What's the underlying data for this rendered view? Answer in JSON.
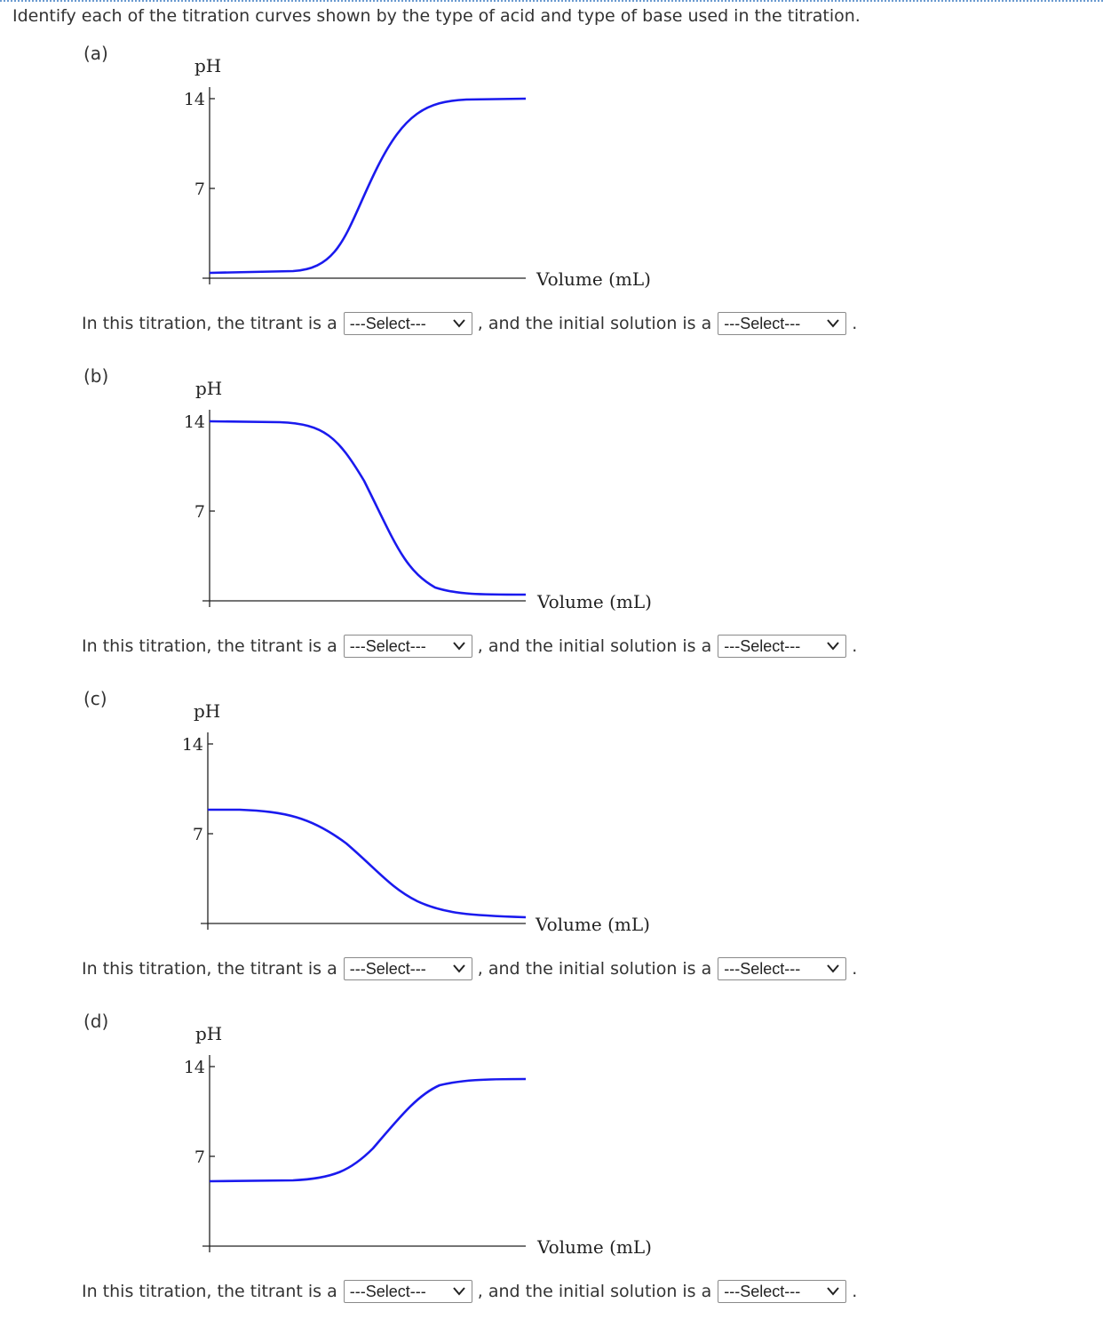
{
  "question": "Identify each of the titration curves shown by the type of acid and type of base used in the titration.",
  "axis": {
    "y_label": "pH",
    "y_ticks": [
      "14",
      "7"
    ],
    "x_label": "Volume (mL)"
  },
  "sentence": {
    "prefix": "In this titration, the titrant is a",
    "middle": ", and the initial solution is a",
    "suffix": "."
  },
  "parts": [
    {
      "label": "(a)",
      "titrant_select": "---Select---",
      "initial_select": "---Select---"
    },
    {
      "label": "(b)",
      "titrant_select": "---Select---",
      "initial_select": "---Select---"
    },
    {
      "label": "(c)",
      "titrant_select": "---Select---",
      "initial_select": "---Select---"
    },
    {
      "label": "(d)",
      "titrant_select": "---Select---",
      "initial_select": "---Select---"
    }
  ],
  "curve_color": "#1a1aee",
  "chart_data": [
    {
      "type": "line",
      "title": "",
      "xlabel": "Volume (mL)",
      "ylabel": "pH",
      "ylim": [
        0,
        14
      ],
      "y_ticks": [
        14,
        7
      ],
      "series": [
        {
          "pH_start": 0.5,
          "pH_end": 14,
          "shape": "rising sigmoid"
        }
      ]
    },
    {
      "type": "line",
      "title": "",
      "xlabel": "Volume (mL)",
      "ylabel": "pH",
      "ylim": [
        0,
        14
      ],
      "y_ticks": [
        14,
        7
      ],
      "series": [
        {
          "pH_start": 14,
          "pH_end": 0.5,
          "shape": "falling sigmoid"
        }
      ]
    },
    {
      "type": "line",
      "title": "",
      "xlabel": "Volume (mL)",
      "ylabel": "pH",
      "ylim": [
        0,
        14
      ],
      "y_ticks": [
        14,
        7
      ],
      "series": [
        {
          "pH_start": 9,
          "pH_end": 0.5,
          "shape": "falling sigmoid"
        }
      ]
    },
    {
      "type": "line",
      "title": "",
      "xlabel": "Volume (mL)",
      "ylabel": "pH",
      "ylim": [
        0,
        14
      ],
      "y_ticks": [
        14,
        7
      ],
      "series": [
        {
          "pH_start": 5,
          "pH_end": 14,
          "shape": "rising sigmoid"
        }
      ]
    }
  ]
}
